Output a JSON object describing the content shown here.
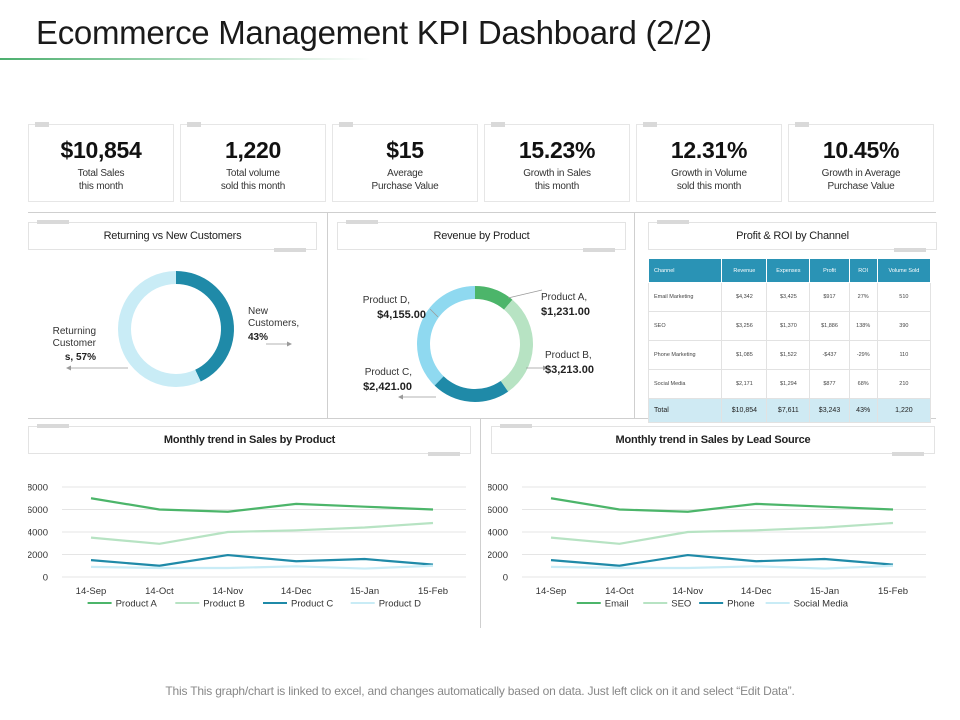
{
  "page": {
    "title": "Ecommerce Management KPI Dashboard (2/2)",
    "footer": "This This graph/chart is linked to excel, and changes automatically based on data. Just left click on it and select “Edit Data”."
  },
  "kpis": [
    {
      "value": "$10,854",
      "label": "Total  Sales\nthis month"
    },
    {
      "value": "1,220",
      "label": "Total  volume\nsold this month"
    },
    {
      "value": "$15",
      "label": "Average\nPurchase Value"
    },
    {
      "value": "15.23%",
      "label": "Growth in Sales\nthis month"
    },
    {
      "value": "12.31%",
      "label": "Growth in Volume\nsold this month"
    },
    {
      "value": "10.45%",
      "label": "Growth in Average\nPurchase Value"
    }
  ],
  "panels": {
    "returning": "Returning vs New Customers",
    "revenue": "Revenue by Product",
    "profit": "Profit & ROI by Channel",
    "trend_product": "Monthly trend in Sales by Product",
    "trend_lead": "Monthly trend in Sales by Lead Source"
  },
  "colors": {
    "teal": "#1f8aa8",
    "light_blue": "#c9ecf6",
    "sky": "#8fd9f0",
    "green": "#4cb56a",
    "light_green": "#b7e3c3"
  },
  "roi_table": {
    "headers": [
      "Channel",
      "Revenue",
      "Expenses",
      "Profit",
      "ROI",
      "Volume Sold"
    ],
    "rows": [
      [
        "Email Marketing",
        "$4,342",
        "$3,425",
        "$917",
        "27%",
        "510"
      ],
      [
        "SEO",
        "$3,256",
        "$1,370",
        "$1,886",
        "138%",
        "390"
      ],
      [
        "Phone Marketing",
        "$1,085",
        "$1,522",
        "-$437",
        "-29%",
        "110"
      ],
      [
        "Social Media",
        "$2,171",
        "$1,294",
        "$877",
        "68%",
        "210"
      ]
    ],
    "total": [
      "Total",
      "$10,854",
      "$7,611",
      "$3,243",
      "43%",
      "1,220"
    ]
  },
  "chart_data": [
    {
      "type": "pie",
      "variant": "donut",
      "title": "Returning vs New Customers",
      "categories": [
        "New Customers",
        "Returning Customers"
      ],
      "values": [
        43,
        57
      ],
      "labels": {
        "new_l1": "New",
        "new_l2": "Customers,",
        "new_l3": "43%",
        "ret_l1": "Returning",
        "ret_l2": "Customer",
        "ret_l3": "s, 57%"
      }
    },
    {
      "type": "pie",
      "variant": "donut",
      "title": "Revenue by Product",
      "categories": [
        "Product A",
        "Product B",
        "Product C",
        "Product D"
      ],
      "values": [
        1231,
        3213,
        2421,
        4155
      ],
      "labels": {
        "a_name": "Product A,",
        "a_val": "$1,231.00",
        "b_name": "Product B,",
        "b_val": "$3,213.00",
        "c_name": "Product C,",
        "c_val": "$2,421.00",
        "d_name": "Product D,",
        "d_val": "$4,155.00"
      }
    },
    {
      "type": "line",
      "title": "Monthly trend in Sales by Product",
      "categories": [
        "14-Sep",
        "14-Oct",
        "14-Nov",
        "14-Dec",
        "15-Jan",
        "15-Feb"
      ],
      "ylim": [
        0,
        8000
      ],
      "yticks": [
        "0",
        "2000",
        "4000",
        "6000",
        "8000"
      ],
      "series": [
        {
          "name": "Product A",
          "values": [
            7000,
            6000,
            5800,
            6500,
            6250,
            6000
          ]
        },
        {
          "name": "Product B",
          "values": [
            3500,
            2950,
            4000,
            4150,
            4400,
            4800
          ]
        },
        {
          "name": "Product C",
          "values": [
            1500,
            1000,
            1950,
            1400,
            1600,
            1100
          ]
        },
        {
          "name": "Product D",
          "values": [
            900,
            800,
            800,
            950,
            750,
            1000
          ]
        }
      ]
    },
    {
      "type": "line",
      "title": "Monthly trend in Sales by Lead Source",
      "categories": [
        "14-Sep",
        "14-Oct",
        "14-Nov",
        "14-Dec",
        "15-Jan",
        "15-Feb"
      ],
      "ylim": [
        0,
        8000
      ],
      "yticks": [
        "0",
        "2000",
        "4000",
        "6000",
        "8000"
      ],
      "series": [
        {
          "name": "Email",
          "values": [
            7000,
            6000,
            5800,
            6500,
            6250,
            6000
          ]
        },
        {
          "name": "SEO",
          "values": [
            3500,
            2950,
            4000,
            4150,
            4400,
            4800
          ]
        },
        {
          "name": "Phone",
          "values": [
            1500,
            1000,
            1950,
            1400,
            1600,
            1100
          ]
        },
        {
          "name": "Social Media",
          "values": [
            900,
            800,
            800,
            950,
            750,
            1000
          ]
        }
      ]
    }
  ]
}
